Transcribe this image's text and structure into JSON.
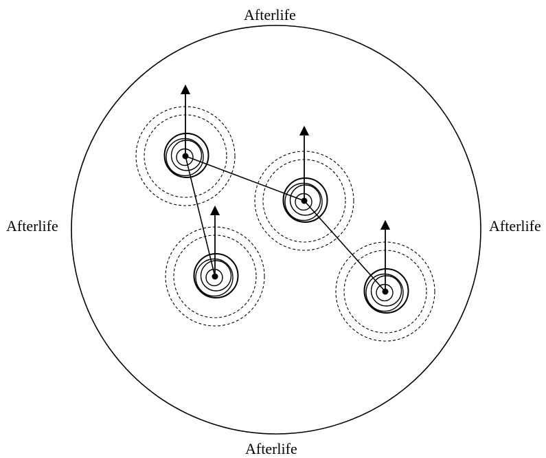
{
  "labels": {
    "top": "Afterlife",
    "bottom": "Afterlife",
    "left": "Afterlife",
    "right": "Afterlife"
  },
  "colors": {
    "ink": "#000000",
    "background": "#ffffff"
  },
  "diagram": {
    "nodes": [
      {
        "id": "node-1",
        "solid_rings": 4,
        "dashed_rings": 2,
        "arrow": "up"
      },
      {
        "id": "node-2",
        "solid_rings": 4,
        "dashed_rings": 2,
        "arrow": "up"
      },
      {
        "id": "node-3",
        "solid_rings": 4,
        "dashed_rings": 2,
        "arrow": "up"
      },
      {
        "id": "node-4",
        "solid_rings": 4,
        "dashed_rings": 2,
        "arrow": "up"
      }
    ],
    "links": [
      {
        "from": "node-1",
        "to": "node-2"
      },
      {
        "from": "node-1",
        "to": "node-3"
      },
      {
        "from": "node-2",
        "to": "node-4"
      }
    ]
  }
}
